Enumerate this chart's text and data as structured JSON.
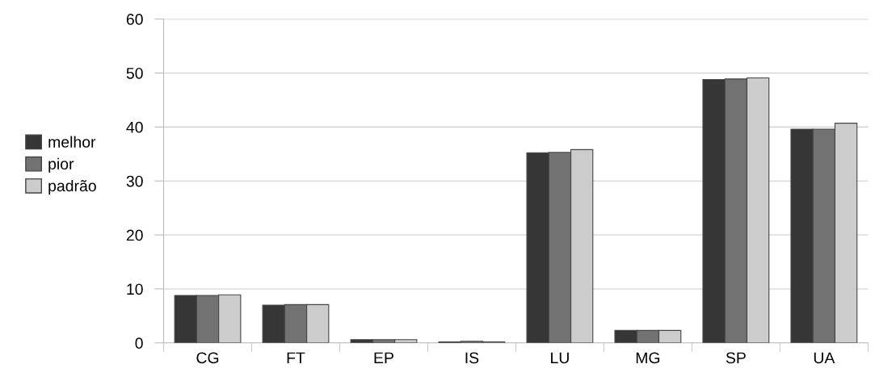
{
  "chart_data": {
    "type": "bar",
    "categories": [
      "CG",
      "FT",
      "EP",
      "IS",
      "LU",
      "MG",
      "SP",
      "UA"
    ],
    "series": [
      {
        "name": "melhor",
        "color": "#363636",
        "values": [
          8.8,
          7.0,
          0.6,
          0.2,
          35.2,
          2.3,
          48.8,
          39.6
        ]
      },
      {
        "name": "pior",
        "color": "#727272",
        "values": [
          8.8,
          7.1,
          0.6,
          0.3,
          35.3,
          2.3,
          48.9,
          39.6
        ]
      },
      {
        "name": "padrão",
        "color": "#cccccc",
        "values": [
          8.9,
          7.1,
          0.6,
          0.2,
          35.8,
          2.3,
          49.1,
          40.7
        ]
      }
    ],
    "ylim": [
      0,
      60
    ],
    "yticks": [
      0,
      10,
      20,
      30,
      40,
      50,
      60
    ],
    "grid": "y",
    "legend": "left"
  }
}
